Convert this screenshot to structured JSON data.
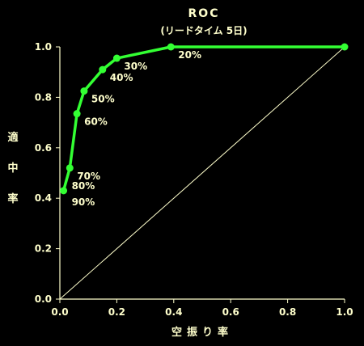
{
  "chart_data": {
    "type": "line",
    "title": "ROC",
    "subtitle": "(リードタイム 5日)",
    "xlabel": "空振り率",
    "ylabel": "適中率",
    "xlim": [
      0,
      1
    ],
    "ylim": [
      0,
      1
    ],
    "x_ticks": [
      "0.0",
      "0.2",
      "0.4",
      "0.6",
      "0.8",
      "1.0"
    ],
    "y_ticks": [
      "0.0",
      "0.2",
      "0.4",
      "0.6",
      "0.8",
      "1.0"
    ],
    "grid": false,
    "legend": "none",
    "series": [
      {
        "points": [
          {
            "x": 0.013,
            "y": 0.43,
            "label": ""
          },
          {
            "x": 0.035,
            "y": 0.52,
            "label": "70%"
          },
          {
            "x": 0.06,
            "y": 0.735,
            "label": "60%"
          },
          {
            "x": 0.085,
            "y": 0.825,
            "label": "50%"
          },
          {
            "x": 0.15,
            "y": 0.91,
            "label": "40%"
          },
          {
            "x": 0.2,
            "y": 0.955,
            "label": "30%"
          },
          {
            "x": 0.39,
            "y": 1.0,
            "label": "20%"
          },
          {
            "x": 1.0,
            "y": 1.0,
            "label": ""
          }
        ]
      }
    ],
    "extra_labels": [
      "80%",
      "90%"
    ],
    "reference_line": {
      "from": [
        0,
        0
      ],
      "to": [
        1,
        1
      ]
    }
  },
  "colors": {
    "background": "#000000",
    "text": "#ffffcc",
    "axis": "#ffffcc",
    "series": "#33ff33",
    "diagonal": "#ffffcc"
  }
}
